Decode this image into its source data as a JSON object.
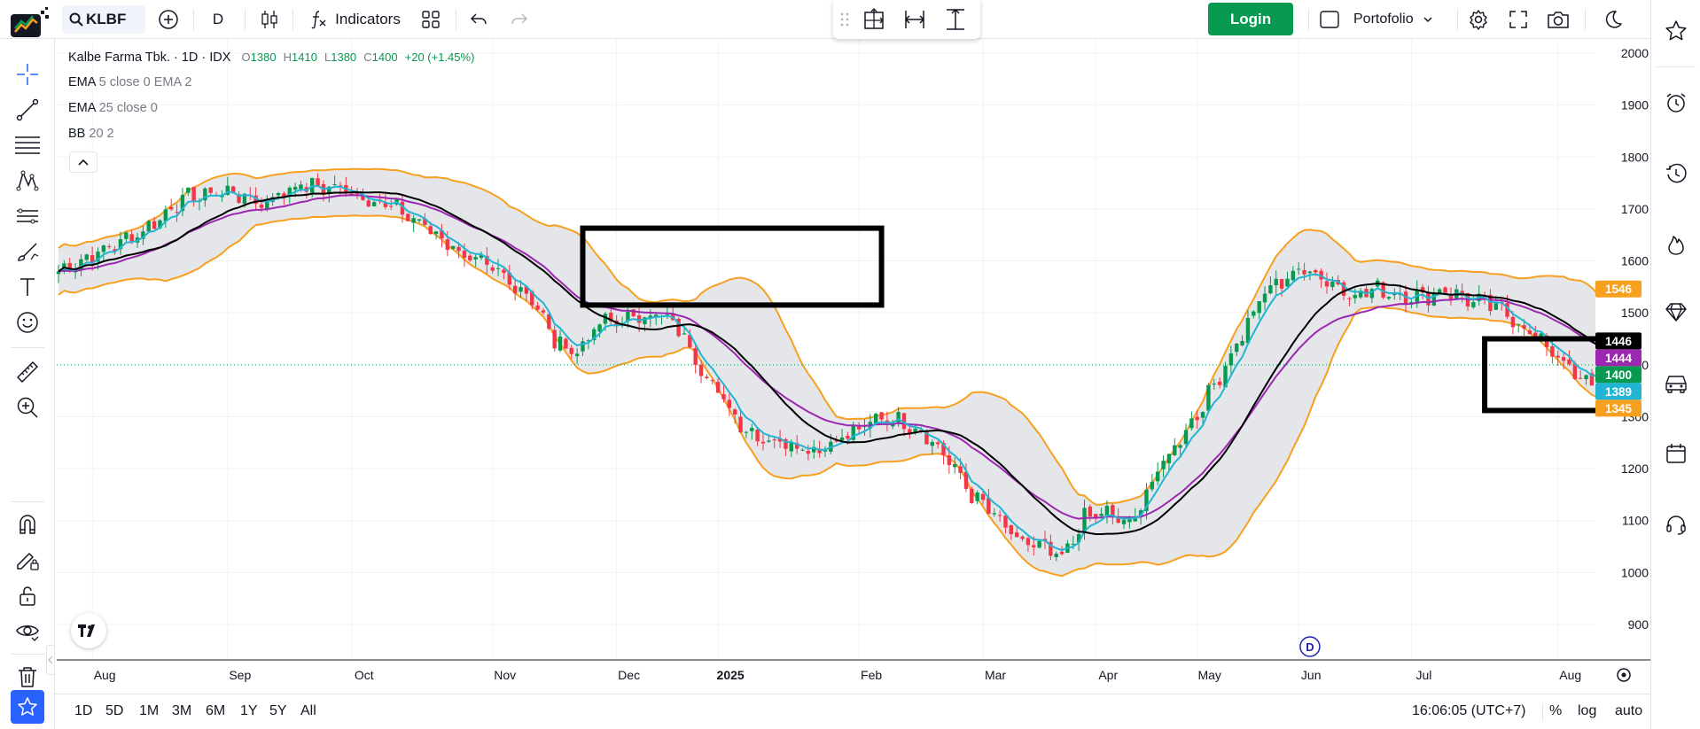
{
  "toolbar": {
    "symbol": "KLBF",
    "interval": "D",
    "indicators_label": "Indicators",
    "login_label": "Login",
    "portfolio_label": "Portofolio"
  },
  "legend": {
    "name": "Kalbe Farma Tbk. · 1D · IDX",
    "o_label": "O",
    "o": "1380",
    "h_label": "H",
    "h": "1410",
    "l_label": "L",
    "l": "1380",
    "c_label": "C",
    "c": "1400",
    "change": "+20 (+1.45%)",
    "ema1_name": "EMA",
    "ema1_params": "5 close 0 EMA 2",
    "ema2_name": "EMA",
    "ema2_params": "25 close 0",
    "bb_name": "BB",
    "bb_params": "20 2"
  },
  "bottom": {
    "ranges": [
      "1D",
      "5D",
      "1M",
      "3M",
      "6M",
      "1Y",
      "5Y",
      "All"
    ],
    "time": "16:06:05 (UTC+7)",
    "pct": "%",
    "log": "log",
    "auto": "auto"
  },
  "colors": {
    "up": "#089950",
    "down": "#f23645",
    "ema_fast": "#22b5d3",
    "ema_slow": "#9c27b0",
    "bb_basis": "#000000",
    "bb_band": "#f7a01f",
    "bb_fill": "#e1e2e6",
    "accent": "#2962ff"
  },
  "chart_data": {
    "type": "candlestick",
    "title": "Kalbe Farma Tbk. · 1D · IDX",
    "y_axis_ticks": [
      900,
      1000,
      1100,
      1200,
      1300,
      1400,
      1500,
      1600,
      1700,
      1800,
      1900,
      2000
    ],
    "ylim": [
      880,
      2010
    ],
    "x_axis_labels": [
      "Aug",
      "Sep",
      "Oct",
      "Nov",
      "Dec",
      "2025",
      "Feb",
      "Mar",
      "Apr",
      "May",
      "Jun",
      "Jul",
      "Aug"
    ],
    "x_axis_bold": "2025",
    "x_axis_label_index": [
      6,
      30,
      52,
      77,
      99,
      117,
      142,
      164,
      184,
      202,
      220,
      240,
      266
    ],
    "num_bars": 275,
    "marker_label": "D",
    "marker_index": 222,
    "anchors": [
      [
        0,
        1580
      ],
      [
        8,
        1620
      ],
      [
        16,
        1665
      ],
      [
        22,
        1720
      ],
      [
        30,
        1735
      ],
      [
        36,
        1710
      ],
      [
        42,
        1745
      ],
      [
        50,
        1740
      ],
      [
        55,
        1720
      ],
      [
        60,
        1700
      ],
      [
        66,
        1660
      ],
      [
        72,
        1610
      ],
      [
        78,
        1575
      ],
      [
        84,
        1530
      ],
      [
        88,
        1445
      ],
      [
        92,
        1425
      ],
      [
        96,
        1480
      ],
      [
        100,
        1485
      ],
      [
        106,
        1500
      ],
      [
        110,
        1470
      ],
      [
        114,
        1395
      ],
      [
        118,
        1330
      ],
      [
        122,
        1275
      ],
      [
        126,
        1255
      ],
      [
        130,
        1250
      ],
      [
        134,
        1235
      ],
      [
        138,
        1255
      ],
      [
        142,
        1275
      ],
      [
        146,
        1300
      ],
      [
        150,
        1290
      ],
      [
        154,
        1265
      ],
      [
        158,
        1215
      ],
      [
        162,
        1150
      ],
      [
        166,
        1110
      ],
      [
        170,
        1060
      ],
      [
        174,
        1050
      ],
      [
        178,
        1025
      ],
      [
        182,
        1105
      ],
      [
        186,
        1115
      ],
      [
        190,
        1090
      ],
      [
        194,
        1175
      ],
      [
        198,
        1245
      ],
      [
        202,
        1305
      ],
      [
        206,
        1380
      ],
      [
        210,
        1460
      ],
      [
        214,
        1540
      ],
      [
        218,
        1570
      ],
      [
        222,
        1585
      ],
      [
        226,
        1555
      ],
      [
        230,
        1535
      ],
      [
        234,
        1545
      ],
      [
        238,
        1535
      ],
      [
        242,
        1530
      ],
      [
        246,
        1545
      ],
      [
        250,
        1525
      ],
      [
        254,
        1515
      ],
      [
        258,
        1490
      ],
      [
        262,
        1450
      ],
      [
        266,
        1420
      ],
      [
        270,
        1365
      ],
      [
        272,
        1370
      ],
      [
        274,
        1400
      ]
    ],
    "last_bar": {
      "open": 1380,
      "high": 1410,
      "low": 1380,
      "close": 1400
    },
    "price_labels": [
      {
        "name": "BB upper",
        "value": 1546,
        "color": "#f7a01f"
      },
      {
        "name": "BB basis",
        "value": 1446,
        "color": "#000000"
      },
      {
        "name": "EMA 25",
        "value": 1444,
        "color": "#9c27b0"
      },
      {
        "name": "Close",
        "value": 1400,
        "color": "#089950"
      },
      {
        "name": "EMA 5",
        "value": 1389,
        "color": "#22b5d3"
      },
      {
        "name": "BB lower",
        "value": 1345,
        "color": "#f7a01f"
      }
    ],
    "annotations": [
      {
        "type": "rectangle",
        "from_index": 93,
        "to_index": 146,
        "price_high": 1663,
        "price_low": 1515
      },
      {
        "type": "rectangle",
        "from_index": 253,
        "to_index": 284,
        "price_high": 1450,
        "price_low": 1312
      }
    ],
    "series": [
      {
        "name": "EMA 5 close",
        "color": "#22b5d3"
      },
      {
        "name": "EMA 25 close",
        "color": "#9c27b0"
      },
      {
        "name": "BB 20 2 basis",
        "color": "#000000"
      },
      {
        "name": "BB 20 2 bands",
        "color": "#f7a01f"
      }
    ]
  }
}
